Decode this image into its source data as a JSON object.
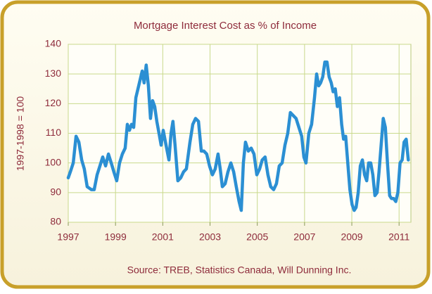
{
  "chart_data": {
    "type": "line",
    "title": "Mortgage Interest Cost as % of Income",
    "y_label": "1997-1998 = 100",
    "source": "Source:  TREB, Statistics Canada, Will Dunning Inc.",
    "x": [
      1997.0,
      1997.09,
      1997.21,
      1997.33,
      1997.45,
      1997.57,
      1997.68,
      1997.8,
      1997.98,
      1998.1,
      1998.22,
      1998.34,
      1998.46,
      1998.58,
      1998.7,
      1998.82,
      1998.93,
      1999.05,
      1999.17,
      1999.29,
      1999.41,
      1999.5,
      1999.59,
      1999.68,
      1999.77,
      1999.86,
      1999.95,
      2000.04,
      2000.13,
      2000.21,
      2000.3,
      2000.39,
      2000.48,
      2000.57,
      2000.66,
      2000.75,
      2000.84,
      2000.93,
      2001.02,
      2001.14,
      2001.26,
      2001.35,
      2001.43,
      2001.52,
      2001.64,
      2001.76,
      2001.88,
      2002.0,
      2002.15,
      2002.27,
      2002.39,
      2002.51,
      2002.63,
      2002.74,
      2002.86,
      2002.98,
      2003.1,
      2003.22,
      2003.34,
      2003.43,
      2003.52,
      2003.64,
      2003.76,
      2003.88,
      2004.0,
      2004.11,
      2004.23,
      2004.32,
      2004.41,
      2004.5,
      2004.62,
      2004.74,
      2004.86,
      2004.98,
      2005.1,
      2005.21,
      2005.33,
      2005.45,
      2005.57,
      2005.69,
      2005.81,
      2005.93,
      2006.05,
      2006.17,
      2006.29,
      2006.4,
      2006.52,
      2006.64,
      2006.76,
      2006.88,
      2006.97,
      2007.06,
      2007.18,
      2007.3,
      2007.42,
      2007.51,
      2007.6,
      2007.68,
      2007.77,
      2007.86,
      2007.95,
      2008.04,
      2008.13,
      2008.21,
      2008.3,
      2008.39,
      2008.48,
      2008.57,
      2008.65,
      2008.74,
      2008.83,
      2008.92,
      2009.01,
      2009.1,
      2009.18,
      2009.27,
      2009.36,
      2009.45,
      2009.54,
      2009.63,
      2009.71,
      2009.8,
      2009.89,
      2009.98,
      2010.07,
      2010.15,
      2010.24,
      2010.33,
      2010.42,
      2010.51,
      2010.6,
      2010.68,
      2010.77,
      2010.86,
      2010.95,
      2011.04,
      2011.13,
      2011.21,
      2011.3,
      2011.39
    ],
    "series": [
      {
        "name": "Mortgage Interest Cost",
        "color": "#2b8fd3",
        "values": [
          95,
          97,
          100,
          109,
          107,
          101,
          98,
          92,
          91,
          91,
          96,
          99,
          102,
          99,
          103,
          100,
          97,
          94,
          100,
          103,
          105,
          113,
          111,
          113,
          112,
          122,
          125,
          128,
          131,
          127,
          133,
          126,
          115,
          121,
          119,
          114,
          110,
          106,
          111,
          106,
          101,
          110,
          114,
          106,
          94,
          95,
          97,
          98,
          107,
          113,
          115,
          114,
          104,
          104,
          103,
          99,
          96,
          98,
          103,
          98,
          92,
          93,
          97,
          100,
          97,
          92,
          87,
          84,
          100,
          107,
          104,
          105,
          103,
          96,
          98,
          101,
          102,
          96,
          92,
          91,
          93,
          99,
          100,
          106,
          110,
          117,
          116,
          115,
          112,
          109,
          102,
          100,
          110,
          113,
          122,
          130,
          126,
          127,
          129,
          134,
          134,
          129,
          127,
          124,
          125,
          119,
          122,
          113,
          108,
          109,
          100,
          91,
          86,
          84,
          85,
          90,
          99,
          101,
          96,
          94,
          100,
          100,
          96,
          89,
          90,
          97,
          106,
          115,
          112,
          100,
          89,
          88,
          88,
          87,
          90,
          100,
          101,
          107,
          108,
          101
        ]
      }
    ],
    "xlim": [
      1997,
      2011.5
    ],
    "xticks": [
      1997,
      1999,
      2001,
      2003,
      2005,
      2007,
      2009,
      2011
    ],
    "ylim": [
      80,
      140
    ],
    "yticks": [
      80,
      90,
      100,
      110,
      120,
      130,
      140
    ],
    "grid": true
  }
}
